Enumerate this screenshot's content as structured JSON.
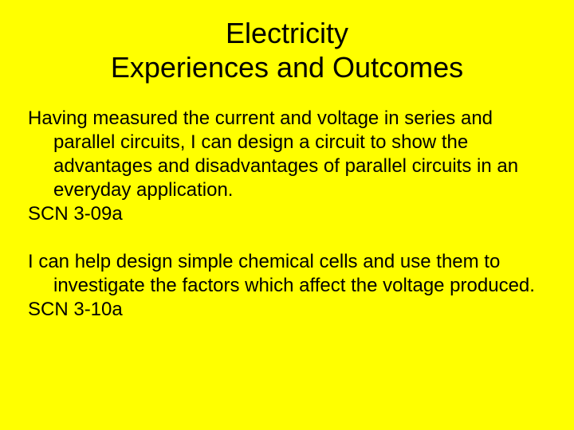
{
  "slide": {
    "background_color": "#ffff00",
    "text_color": "#000000",
    "title_line1": "Electricity",
    "title_line2": "Experiences and Outcomes",
    "title_fontsize": 36,
    "body_fontsize": 24,
    "body_font_family": "Comic Sans MS",
    "outcomes": [
      {
        "text": "Having measured the current and voltage in series and parallel circuits, I can design a circuit to show the advantages and disadvantages of parallel circuits in an everyday application.",
        "code": "SCN 3-09a"
      },
      {
        "text": "I can help design simple chemical cells and use them to investigate the factors which affect the voltage produced.",
        "code": "SCN 3-10a"
      }
    ]
  }
}
